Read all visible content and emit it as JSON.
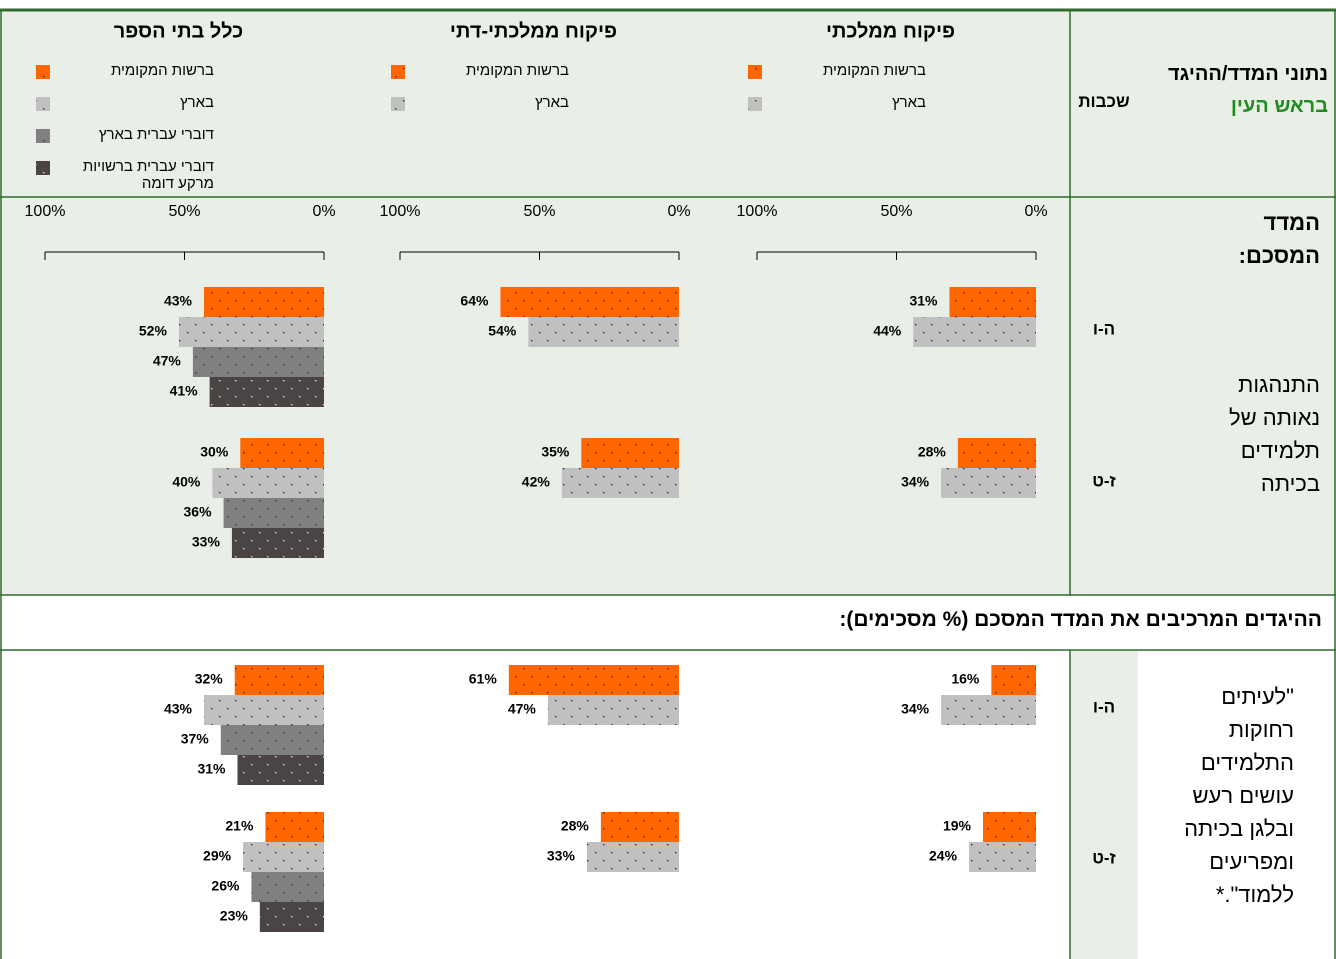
{
  "header": {
    "label": "נתוני המדד/ההיגד",
    "label_highlight": "בראש העין",
    "grades_label": "שכבות"
  },
  "summary": {
    "title": "המדד המסכם:",
    "item": "התנהגות נאותה של תלמידים בכיתה"
  },
  "components": {
    "title": "ההיגדים המרכיבים את המדד המסכם (% מסכימים):",
    "item": "\"לעיתים רחוקות התלמידים עושים רעש ובלגן בכיתה ומפריעים ללמוד\".*"
  },
  "grades": [
    "ה-ו",
    "ז-ט",
    "ה-ו",
    "ז-ט"
  ],
  "chart_data": [
    {
      "type": "bar",
      "title": "פיקוח ממלכתי",
      "xlim": [
        0,
        100
      ],
      "xticks": [
        {
          "value": 100,
          "label": "100%"
        },
        {
          "value": 50,
          "label": "50%"
        },
        {
          "value": 0,
          "label": "0%"
        }
      ],
      "series": [
        {
          "name": "ברשות המקומית",
          "color": "#ff6600",
          "values": [
            31,
            28,
            16,
            19
          ],
          "value_labels": [
            "31%",
            "28%",
            "16%",
            "19%"
          ]
        },
        {
          "name": "בארץ",
          "color": "#c0c0c0",
          "values": [
            44,
            34,
            34,
            24
          ],
          "value_labels": [
            "44%",
            "34%",
            "34%",
            "24%"
          ]
        }
      ]
    },
    {
      "type": "bar",
      "title": "פיקוח ממלכתי-דתי",
      "xlim": [
        0,
        100
      ],
      "xticks": [
        {
          "value": 100,
          "label": "100%"
        },
        {
          "value": 50,
          "label": "50%"
        },
        {
          "value": 0,
          "label": "0%"
        }
      ],
      "series": [
        {
          "name": "ברשות המקומית",
          "color": "#ff6600",
          "values": [
            64,
            35,
            61,
            28
          ],
          "value_labels": [
            "64%",
            "35%",
            "61%",
            "28%"
          ]
        },
        {
          "name": "בארץ",
          "color": "#c0c0c0",
          "values": [
            54,
            42,
            47,
            33
          ],
          "value_labels": [
            "54%",
            "42%",
            "47%",
            "33%"
          ]
        }
      ]
    },
    {
      "type": "bar",
      "title": "כלל בתי הספר",
      "xlim": [
        0,
        100
      ],
      "xticks": [
        {
          "value": 100,
          "label": "100%"
        },
        {
          "value": 50,
          "label": "50%"
        },
        {
          "value": 0,
          "label": "0%"
        }
      ],
      "series": [
        {
          "name": "ברשות המקומית",
          "color": "#ff6600",
          "values": [
            43,
            30,
            32,
            21
          ],
          "value_labels": [
            "43%",
            "30%",
            "32%",
            "21%"
          ]
        },
        {
          "name": "בארץ",
          "color": "#c0c0c0",
          "values": [
            52,
            40,
            43,
            29
          ],
          "value_labels": [
            "52%",
            "40%",
            "43%",
            "29%"
          ]
        },
        {
          "name": "דוברי עברית בארץ",
          "color": "#808080",
          "values": [
            47,
            36,
            37,
            26
          ],
          "value_labels": [
            "47%",
            "36%",
            "37%",
            "26%"
          ]
        },
        {
          "name": "דוברי עברית ברשויות מרקע דומה",
          "color": "#4a4544",
          "values": [
            41,
            33,
            31,
            23
          ],
          "value_labels": [
            "41%",
            "33%",
            "31%",
            "23%"
          ]
        }
      ]
    }
  ]
}
